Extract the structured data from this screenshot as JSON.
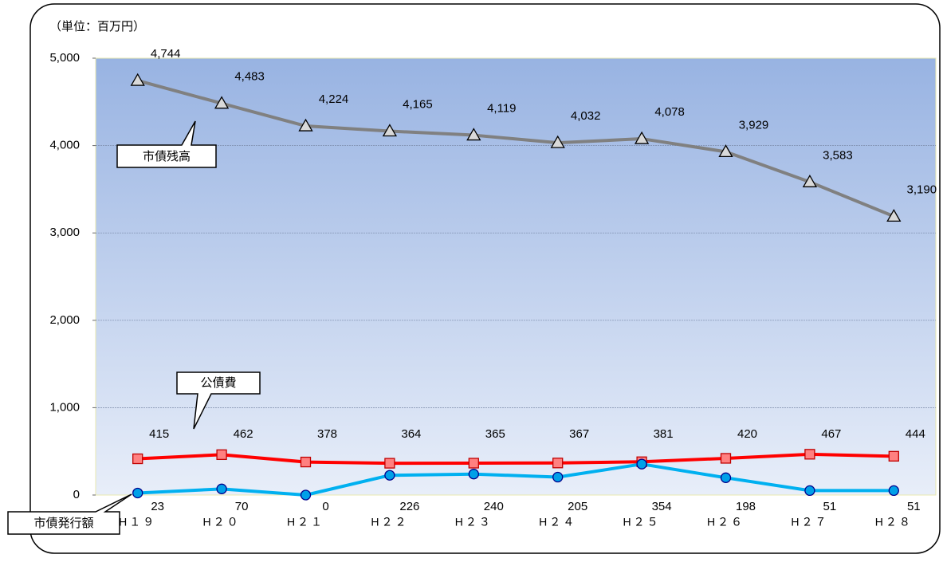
{
  "chart_data": {
    "type": "line",
    "unit": "（単位：百万円）",
    "categories": [
      "H１９",
      "H２０",
      "H２１",
      "H２２",
      "H２３",
      "H２４",
      "H２５",
      "H２６",
      "H２７",
      "H２８"
    ],
    "series": [
      {
        "name": "市債残高",
        "color": "#808080",
        "marker": "triangle",
        "values": [
          4744,
          4483,
          4224,
          4165,
          4119,
          4032,
          4078,
          3929,
          3583,
          3190
        ],
        "value_labels": [
          "4,744",
          "4,483",
          "4,224",
          "4,165",
          "4,119",
          "4,032",
          "4,078",
          "3,929",
          "3,583",
          "3,190"
        ]
      },
      {
        "name": "公債費",
        "color": "#ff0000",
        "marker": "square",
        "values": [
          415,
          462,
          378,
          364,
          365,
          367,
          381,
          420,
          467,
          444
        ]
      },
      {
        "name": "市債発行額",
        "color": "#00b0f0",
        "marker": "circle",
        "values": [
          23,
          70,
          0,
          226,
          240,
          205,
          354,
          198,
          51,
          51
        ]
      }
    ],
    "ylim": [
      0,
      5000
    ],
    "yticks": [
      0,
      {
        "value": 1000,
        "label": "1,000"
      },
      {
        "value": 2000,
        "label": "2,000"
      },
      {
        "value": 3000,
        "label": "3,000"
      },
      {
        "value": 4000,
        "label": "4,000"
      },
      {
        "value": 5000,
        "label": "5,000"
      }
    ],
    "grid": true
  }
}
